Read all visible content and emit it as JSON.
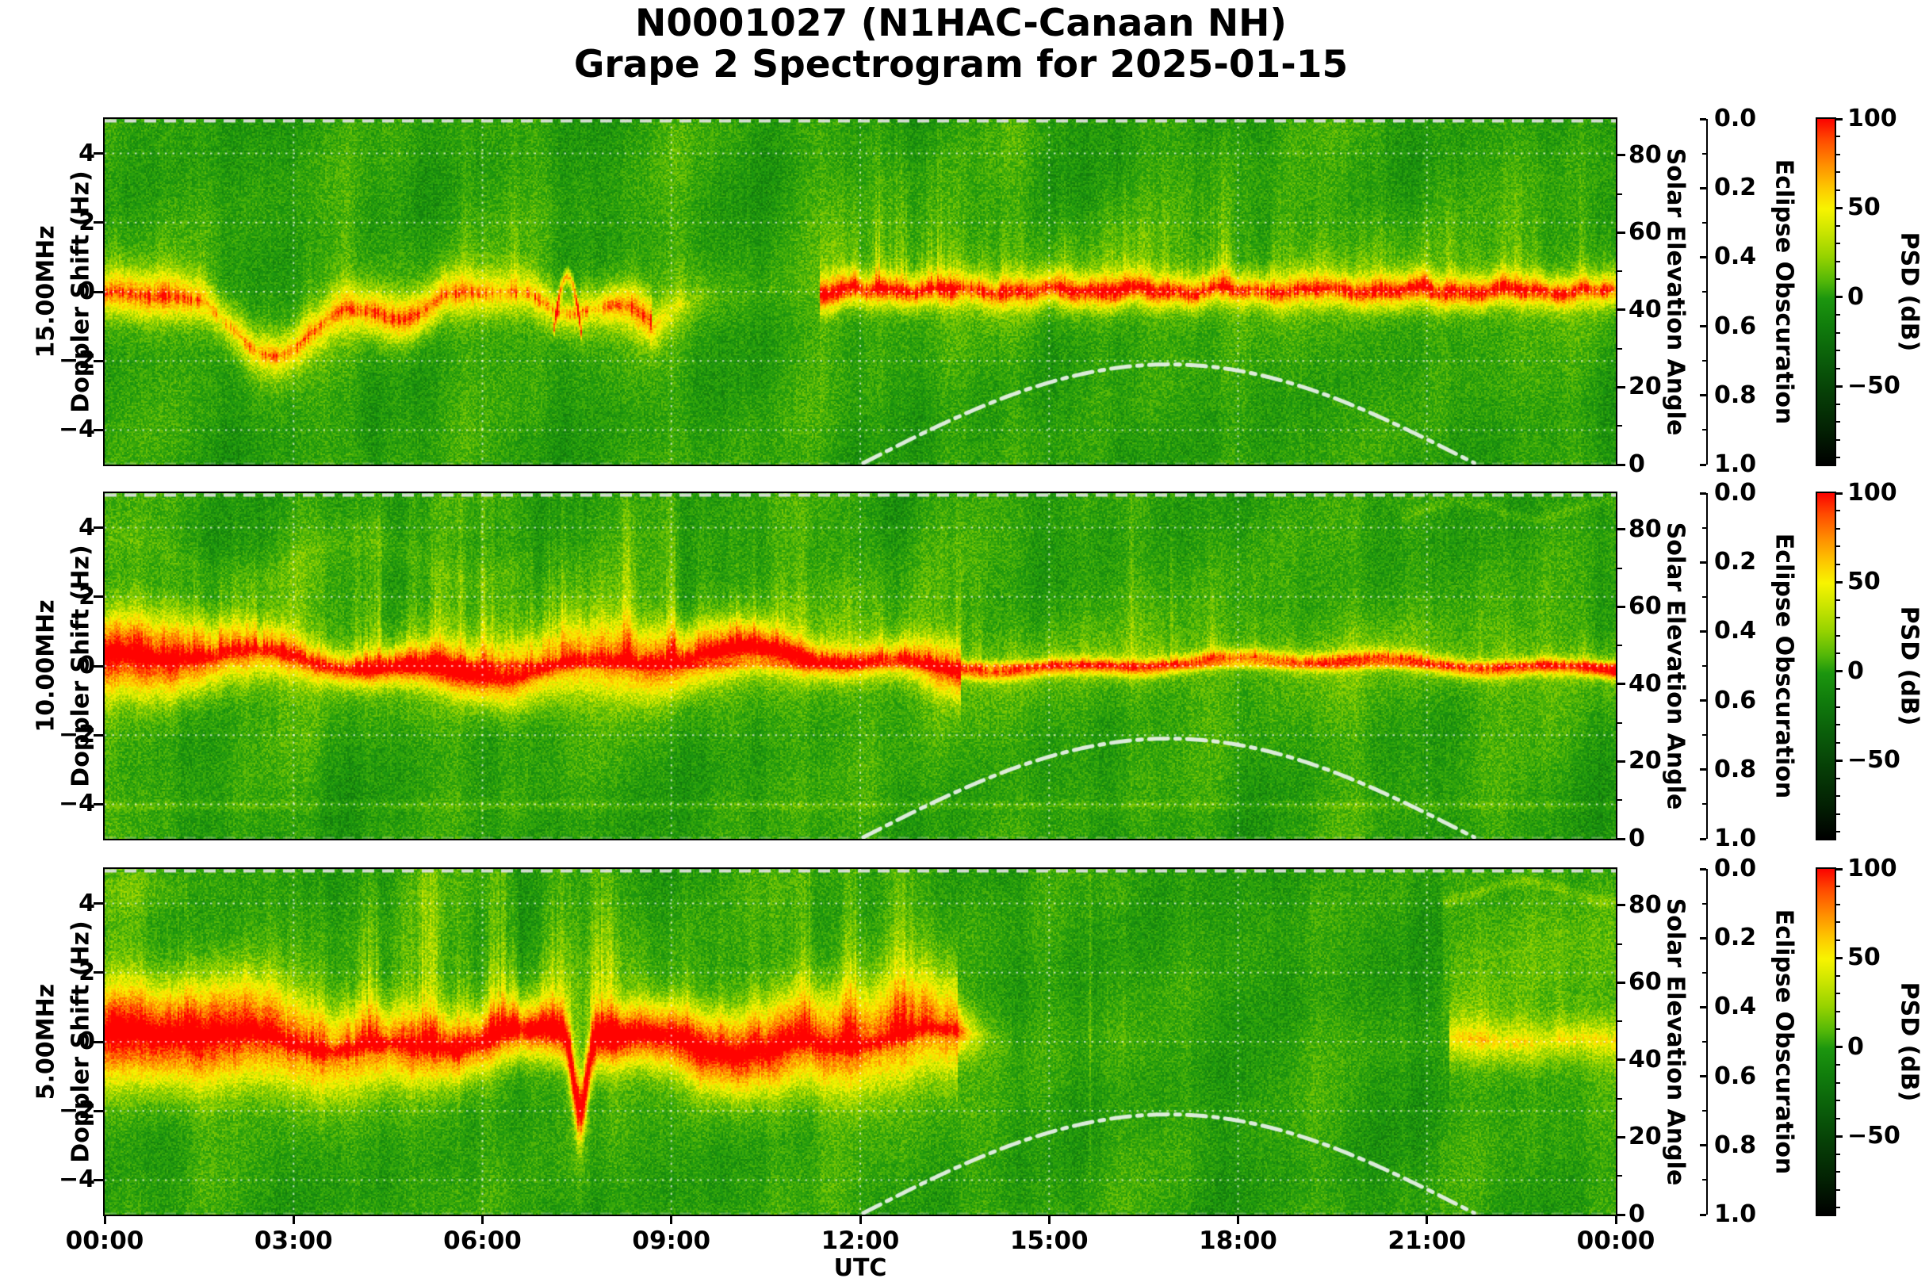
{
  "figure": {
    "title_line1": "N0001027 (N1HAC-Canaan NH)",
    "title_line2": "Grape 2 Spectrogram for 2025-01-15"
  },
  "chart_data": {
    "type": "heatmap",
    "title": "N0001027 (N1HAC-Canaan NH) — Grape 2 Spectrogram for 2025-01-15",
    "xlabel": "UTC",
    "x_ticks": [
      "00:00",
      "03:00",
      "06:00",
      "09:00",
      "12:00",
      "15:00",
      "18:00",
      "21:00",
      "00:00"
    ],
    "x_range_hours": [
      0,
      24
    ],
    "doppler_axis": {
      "label_line2": "Doppler Shift (Hz)",
      "range_hz": [
        -5,
        5
      ],
      "ticks": [
        "4",
        "2",
        "0",
        "−2",
        "−4"
      ],
      "tick_values": [
        4,
        2,
        0,
        -2,
        -4
      ]
    },
    "panels": [
      {
        "frequency": "15.00MHz",
        "description": "Weak wandering Doppler trace between 0 and −2.5 Hz from 00:00–08:30 with faint vertical wisps, near-quiet 08:30–11:30, then a bright spiky yellow band centred on 0 Hz (excursions to ±3 Hz) from ~11:30 through 24:00; small red-orange arc near 07:20."
      },
      {
        "frequency": "10.00MHz",
        "description": "Continuous bright yellow band centred near 0 Hz with a wavy orange-red core across the whole day; diffuse plumes to ±4 Hz from 00:00–13:30; band narrows to a thin line after ~14:00; faint horizontal line near −4 Hz; bright red spot at the far right end."
      },
      {
        "frequency": "5.00MHz",
        "description": "Broad bright yellow band at 0 Hz with red-orange wavy core from 00:00–13:30, tall yellow plumes to +4 Hz, sharp dip to −2.5 Hz near 07:30; signal cuts off ~13:40, quiet green 14:00–21:20 with a few thin vertical streaks; weak band and light wash return after ~21:20."
      }
    ],
    "solar_axis": {
      "label": "Solar Elevation Angle",
      "ticks": [
        "80",
        "60",
        "40",
        "20",
        "0"
      ],
      "tick_values": [
        80,
        60,
        40,
        20,
        0
      ],
      "range_deg": [
        0,
        89
      ]
    },
    "eclipse_axis": {
      "label": "Eclipse Obscuration",
      "ticks": [
        "0.0",
        "0.2",
        "0.4",
        "0.6",
        "0.8",
        "1.0"
      ],
      "range": [
        0.0,
        1.0
      ],
      "increases_downward": true
    },
    "colorbar": {
      "label": "PSD (dB)",
      "ticks": [
        "100",
        "50",
        "0",
        "−50"
      ],
      "tick_values": [
        100,
        50,
        0,
        -50
      ],
      "value_range_top_to_bottom": [
        100,
        -94
      ],
      "colors_top_to_bottom": [
        "#fb0300",
        "#ff8c00",
        "#f8f400",
        "#95d200",
        "#1c960e",
        "#0a5c0a",
        "#063d06",
        "#000000"
      ]
    },
    "solar_elevation_curve": {
      "style": "white dash-dot",
      "max_elevation_deg": 25.5,
      "solar_noon_utc": "16:54",
      "zero_crossings_utc": [
        "12:03",
        "21:42"
      ],
      "points_t_el": [
        [
          12.05,
          0
        ],
        [
          13.0,
          7.7
        ],
        [
          14.0,
          15.1
        ],
        [
          15.0,
          20.8
        ],
        [
          16.0,
          24.4
        ],
        [
          16.9,
          25.5
        ],
        [
          18.0,
          23.9
        ],
        [
          19.0,
          19.8
        ],
        [
          20.0,
          13.7
        ],
        [
          21.0,
          6.1
        ],
        [
          21.75,
          0
        ]
      ]
    },
    "grid": "white dotted lines every 2 Hz and every 3 h; dashed light line along panel tops"
  }
}
